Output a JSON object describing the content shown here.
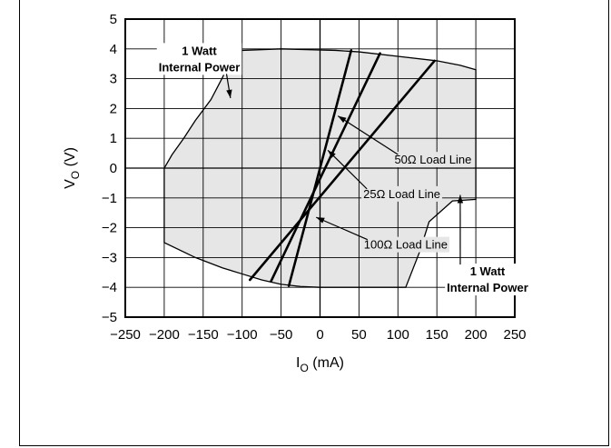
{
  "chart_data": {
    "type": "area",
    "xlabel": "I",
    "xlabel_sub": "O",
    "xlabel_unit": "(mA)",
    "ylabel": "V",
    "ylabel_sub": "O",
    "ylabel_unit": "(V)",
    "xlim": [
      -250,
      250
    ],
    "ylim": [
      -5,
      5
    ],
    "x_ticks": [
      -250,
      -200,
      -150,
      -100,
      -50,
      0,
      50,
      100,
      150,
      200,
      250
    ],
    "y_ticks": [
      5,
      4,
      3,
      2,
      1,
      0,
      -1,
      -2,
      -3,
      -4,
      -5
    ],
    "x_tick_labels": [
      "−250",
      "−200",
      "−150",
      "−100",
      "−50",
      "0",
      "50",
      "100",
      "150",
      "200",
      "250"
    ],
    "y_tick_labels": [
      "5",
      "4",
      "3",
      "2",
      "1",
      "0",
      "−1",
      "−2",
      "−3",
      "−4",
      "−5"
    ],
    "grid": true,
    "operating_region": {
      "fill": "#e6e6e6",
      "boundary": [
        [
          -200,
          0
        ],
        [
          -200,
          -2.5
        ],
        [
          -160,
          -3
        ],
        [
          -125,
          -3.35
        ],
        [
          -100,
          -3.55
        ],
        [
          -75,
          -3.75
        ],
        [
          -50,
          -3.9
        ],
        [
          -25,
          -3.97
        ],
        [
          0,
          -4
        ],
        [
          110,
          -4
        ],
        [
          128,
          -2.8
        ],
        [
          140,
          -1.8
        ],
        [
          170,
          -1.1
        ],
        [
          200,
          -1.05
        ],
        [
          200,
          3.3
        ],
        [
          180,
          3.45
        ],
        [
          150,
          3.6
        ],
        [
          100,
          3.75
        ],
        [
          50,
          3.9
        ],
        [
          20,
          3.95
        ],
        [
          -50,
          4
        ],
        [
          -100,
          3.95
        ],
        [
          -110,
          3.95
        ],
        [
          -125,
          3.05
        ],
        [
          -140,
          2.3
        ],
        [
          -160,
          1.6
        ],
        [
          -175,
          1.0
        ],
        [
          -190,
          0.45
        ],
        [
          -200,
          0
        ]
      ]
    },
    "load_lines": [
      {
        "name": "25Ω  Load Line",
        "x": [
          -90,
          147
        ],
        "y": [
          -3.75,
          3.6
        ],
        "label_pos": [
          105,
          -0.85
        ],
        "arrow_to": [
          10,
          0.6
        ]
      },
      {
        "name": "50Ω  Load Line",
        "x": [
          -63,
          77
        ],
        "y": [
          -3.8,
          3.85
        ],
        "label_pos": [
          145,
          0.3
        ],
        "arrow_to": [
          23,
          1.75
        ]
      },
      {
        "name": "100Ω  Load Line",
        "x": [
          -40,
          40
        ],
        "y": [
          -3.95,
          3.95
        ],
        "label_pos": [
          110,
          -2.55
        ],
        "arrow_to": [
          -5,
          -1.65
        ]
      }
    ],
    "annotations": [
      {
        "text": [
          "1 Watt",
          "Internal Power"
        ],
        "label_pos": [
          -155,
          3.8
        ],
        "arrow_to": [
          -115,
          2.35
        ]
      },
      {
        "text": [
          "1 Watt",
          "Internal Power"
        ],
        "label_pos": [
          215,
          -3.6
        ],
        "arrow_to": [
          180,
          -0.9
        ]
      }
    ]
  }
}
